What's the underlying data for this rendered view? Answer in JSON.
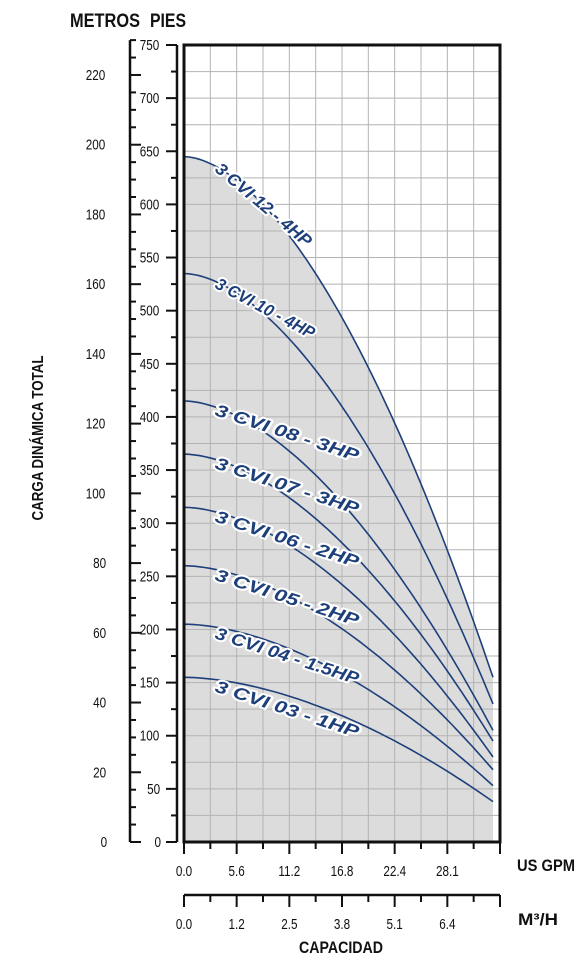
{
  "chart_data": {
    "type": "line",
    "title": "",
    "ylabel": "CARGA DINÁMICA TOTAL",
    "y_left_label": "METROS",
    "y_right_label": "PIES",
    "xlabel": "CAPACIDAD",
    "x_primary_unit": "US GPM",
    "x_secondary_unit": "M³/H",
    "x_ticks_gpm": [
      "0.0",
      "5.6",
      "11.2",
      "16.8",
      "22.4",
      "28.1"
    ],
    "x_ticks_m3h": [
      "0.0",
      "1.2",
      "2.5",
      "3.8",
      "5.1",
      "6.4"
    ],
    "y_ticks_feet": [
      "0",
      "50",
      "100",
      "150",
      "200",
      "250",
      "300",
      "350",
      "400",
      "450",
      "500",
      "550",
      "600",
      "650",
      "700",
      "750"
    ],
    "y_ticks_meters": [
      "0",
      "20",
      "40",
      "60",
      "80",
      "100",
      "120",
      "140",
      "160",
      "180",
      "200",
      "220"
    ],
    "xlim": [
      0,
      31.5
    ],
    "ylim_feet": [
      0,
      750
    ],
    "grid": true,
    "fill_color": "#dcdcdc",
    "curve_color": "#1d3f7a",
    "label_color": "#1d3f7a",
    "series": [
      {
        "name": "3 CVI 12 - 4HP",
        "shutoff_ft": 645,
        "end_ft": 155
      },
      {
        "name": "3 CVI 10 - 4HP",
        "shutoff_ft": 535,
        "end_ft": 130
      },
      {
        "name": "3 CVI 08 - 3HP",
        "shutoff_ft": 415,
        "end_ft": 105
      },
      {
        "name": "3 CVI 07 - 3HP",
        "shutoff_ft": 365,
        "end_ft": 95
      },
      {
        "name": "3 CVI 06 - 2HP",
        "shutoff_ft": 315,
        "end_ft": 80
      },
      {
        "name": "3 CVI 05 - 2HP",
        "shutoff_ft": 260,
        "end_ft": 68
      },
      {
        "name": "3 CVI 04 - 1.5HP",
        "shutoff_ft": 205,
        "end_ft": 53
      },
      {
        "name": "3 CVI 03 - 1HP",
        "shutoff_ft": 155,
        "end_ft": 38
      }
    ],
    "x_end_gpm": 30.8
  }
}
